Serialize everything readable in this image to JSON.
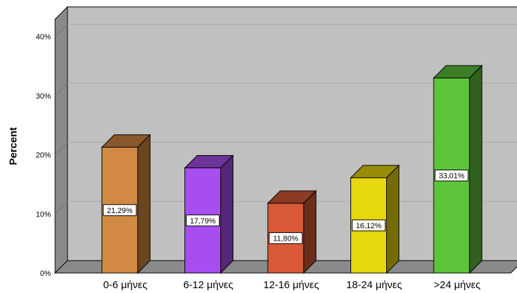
{
  "chart_data": {
    "type": "bar",
    "style": "3d",
    "categories": [
      "0-6 μήνες",
      "6-12 μήνες",
      "12-16 μήνες",
      "18-24 μήνες",
      ">24 μήνες"
    ],
    "values": [
      21.29,
      17.79,
      11.8,
      16.12,
      33.01
    ],
    "data_labels": [
      "21,29%",
      "17,79%",
      "11,80%",
      "16,12%",
      "33,01%"
    ],
    "colors": [
      "#d28944",
      "#a64eef",
      "#d85a37",
      "#e6d80c",
      "#5ec43a"
    ],
    "title": "",
    "xlabel": "",
    "ylabel": "Percent",
    "ylim": [
      0,
      40
    ],
    "yticks": [
      0,
      10,
      20,
      30,
      40
    ],
    "ytick_labels": [
      "0%",
      "10%",
      "20%",
      "30%",
      "40%"
    ],
    "grid": true,
    "legend": "none",
    "background_color": "#c0c0c0"
  }
}
